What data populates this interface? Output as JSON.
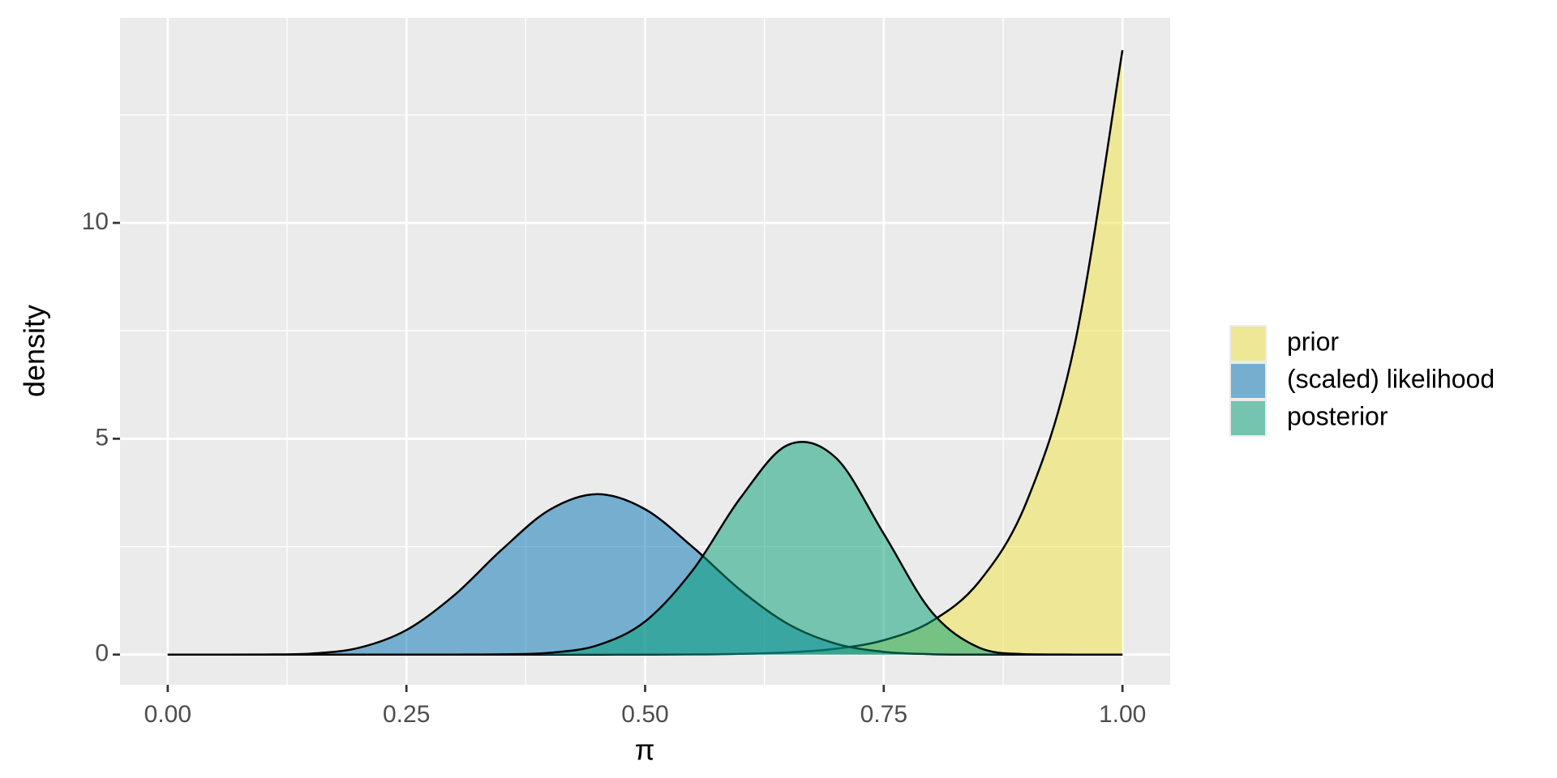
{
  "chart_data": {
    "type": "area",
    "x_label": "π",
    "y_label": "density",
    "x": [
      0,
      0.05,
      0.1,
      0.15,
      0.2,
      0.25,
      0.3,
      0.35,
      0.4,
      0.45,
      0.5,
      0.55,
      0.6,
      0.65,
      0.7,
      0.75,
      0.8,
      0.85,
      0.9,
      0.95,
      1
    ],
    "series": [
      {
        "name": "prior",
        "color": "#f0e442",
        "values": [
          0,
          0,
          0,
          0,
          0,
          0,
          0,
          0,
          0,
          0.0003,
          0.0017,
          0.0059,
          0.0183,
          0.0518,
          0.1356,
          0.3326,
          0.7697,
          1.692,
          3.559,
          7.186,
          14
        ]
      },
      {
        "name": "(scaled) likelihood",
        "color": "#0072b2",
        "values": [
          0,
          0,
          0.0011,
          0.0227,
          0.155,
          0.568,
          1.373,
          2.433,
          3.354,
          3.717,
          3.367,
          2.489,
          1.492,
          0.705,
          0.252,
          0.0632,
          0.0097,
          0.0007,
          0,
          0,
          0
        ]
      },
      {
        "name": "posterior",
        "color": "#009e73",
        "values": [
          0,
          0,
          0,
          0,
          0,
          0,
          0.0004,
          0.0054,
          0.042,
          0.215,
          0.766,
          1.956,
          3.633,
          4.86,
          4.554,
          2.798,
          0.994,
          0.159,
          0.0065,
          0,
          0
        ]
      }
    ],
    "fill_opacity": 0.5,
    "xlim": [
      -0.05,
      1.05
    ],
    "xticks": [
      {
        "value": 0,
        "label": "0.00"
      },
      0.25,
      {
        "value": 0.5,
        "label": "0.50"
      },
      0.75,
      {
        "value": 1,
        "label": "1.00"
      }
    ],
    "ylim": [
      -0.7,
      14.75
    ],
    "yticks": [
      0,
      5,
      10
    ],
    "grid": true,
    "legend": "right"
  }
}
